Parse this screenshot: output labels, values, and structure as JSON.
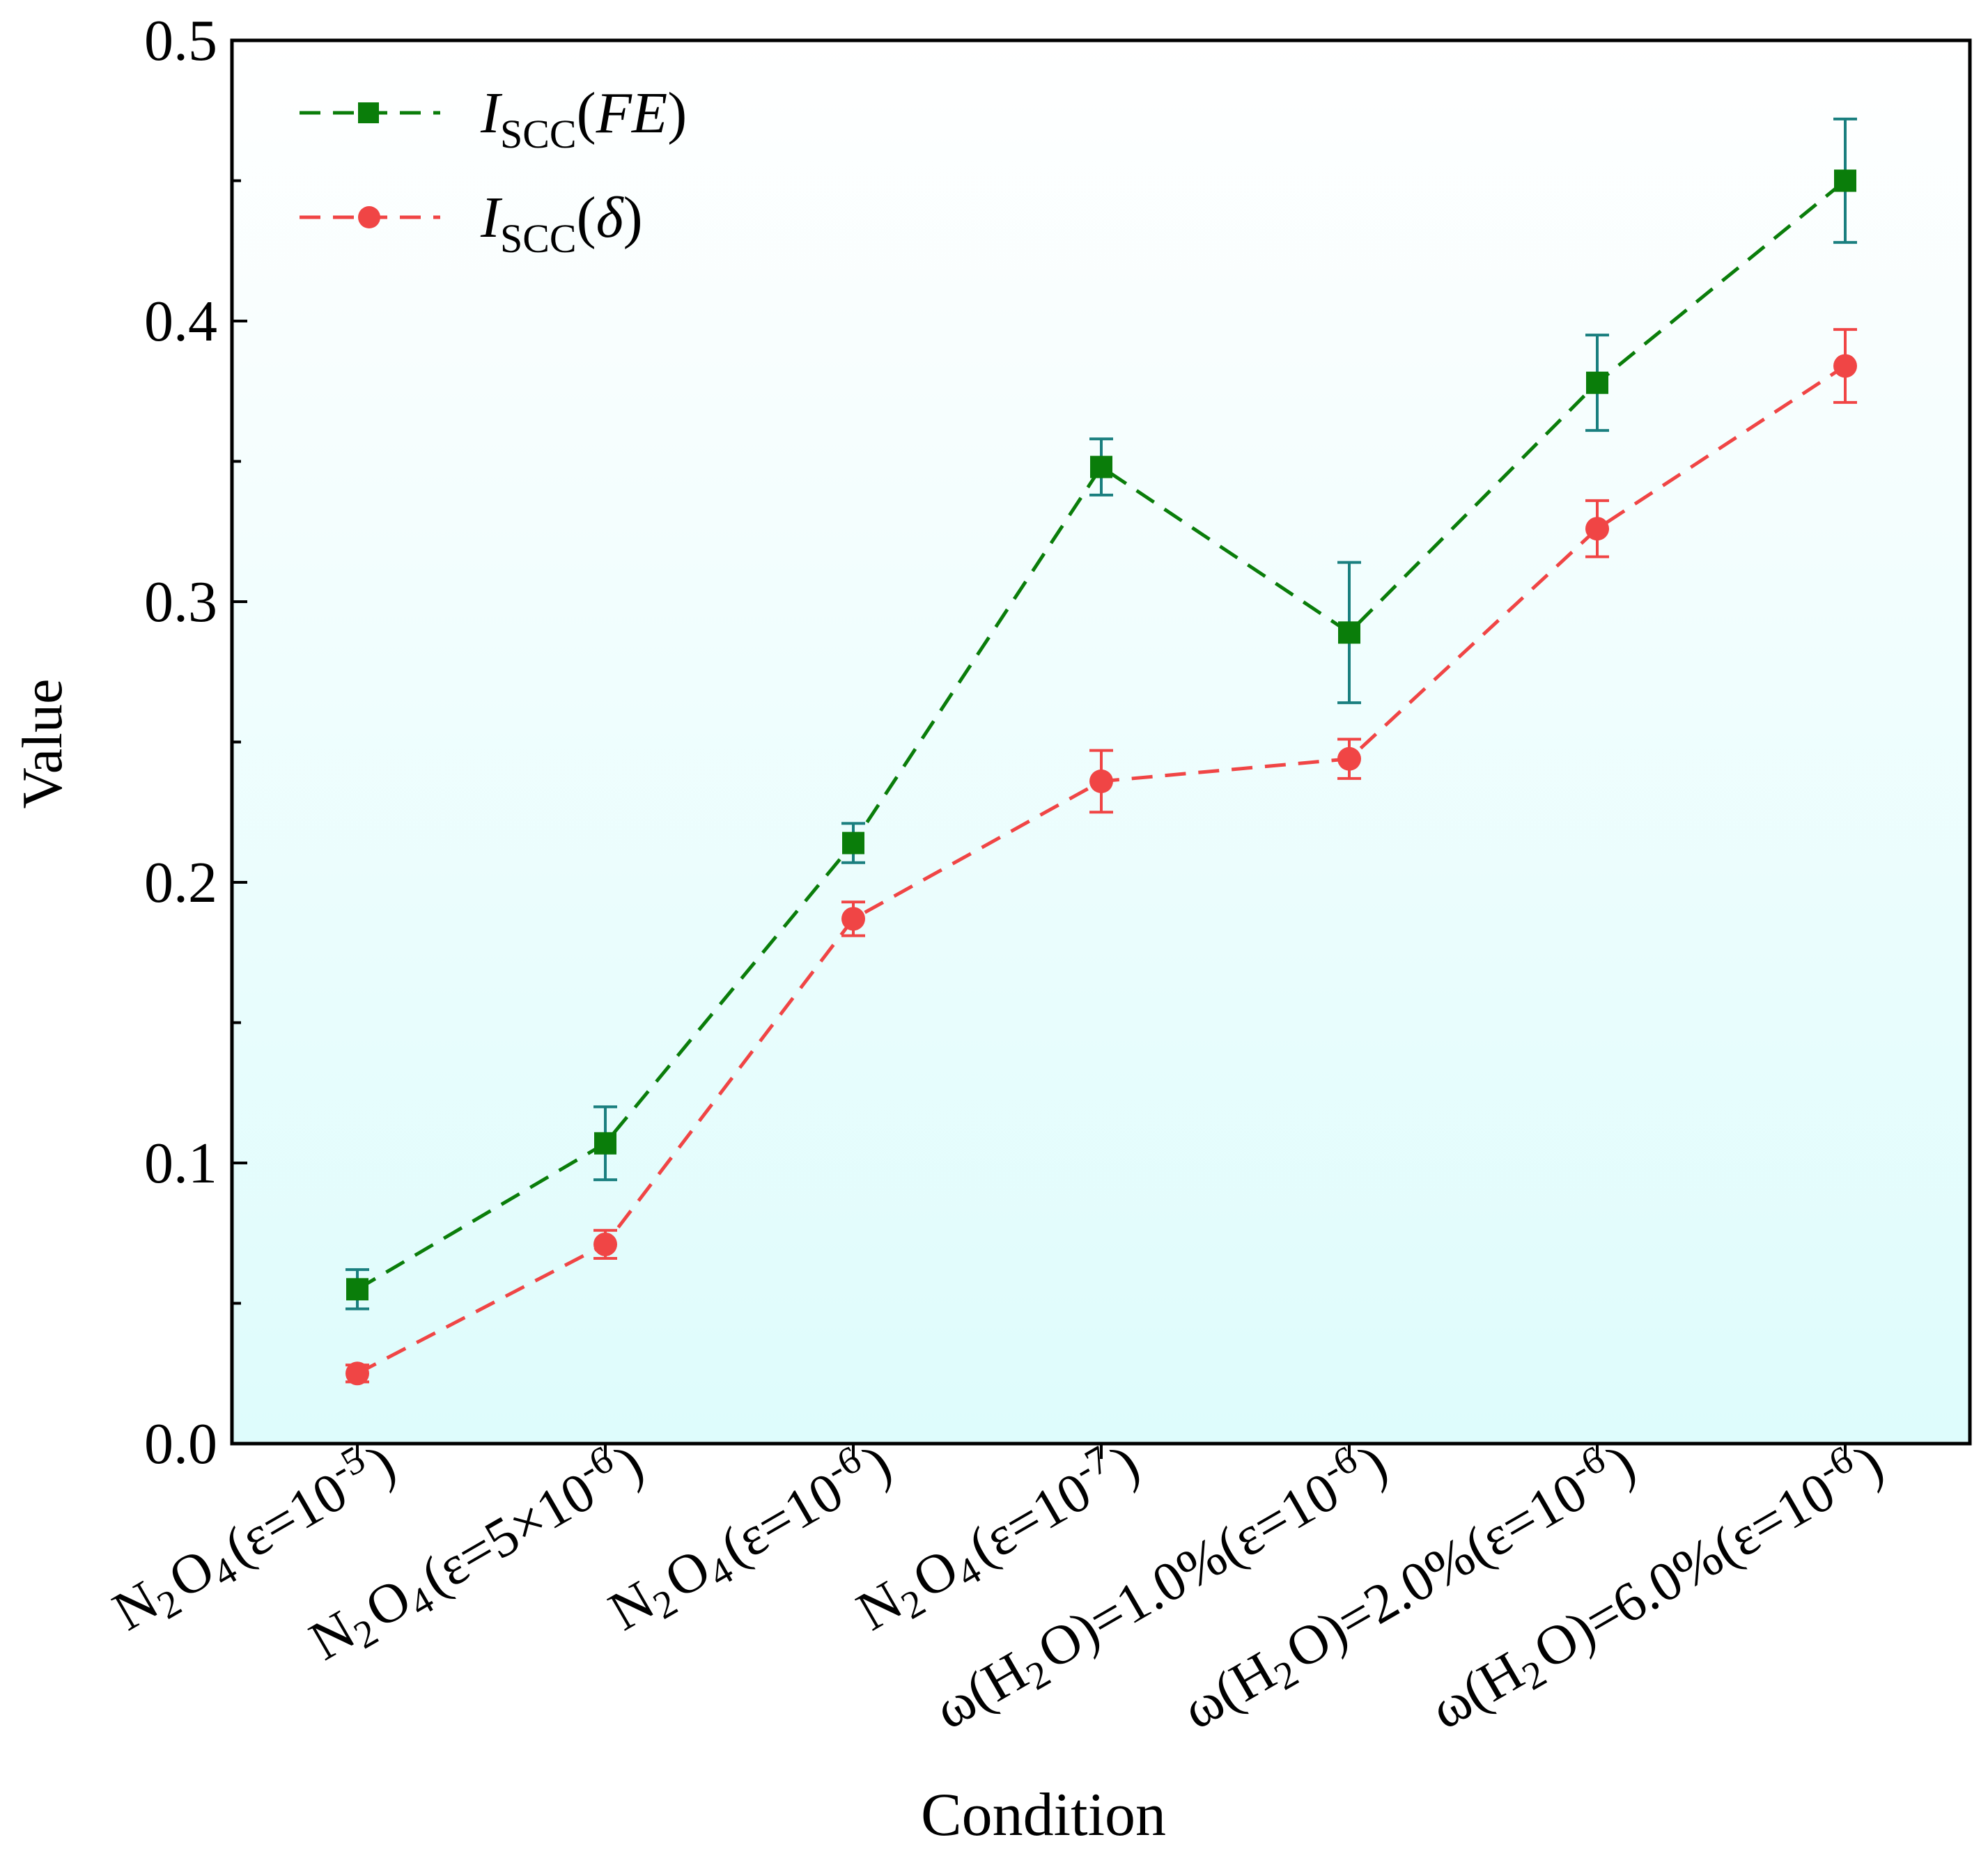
{
  "chart_data": {
    "type": "line",
    "title": "",
    "xlabel": "Condition",
    "ylabel": "Value",
    "ylim": [
      0,
      0.5
    ],
    "yticks": [
      0.0,
      0.1,
      0.2,
      0.3,
      0.4,
      0.5
    ],
    "ytick_labels": [
      "0.0",
      "0.1",
      "0.2",
      "0.3",
      "0.4",
      "0.5"
    ],
    "grid": false,
    "legend_position": "top-left",
    "categories": [
      "N2O4(ε=10-5)",
      "N2O4(ε=5×10-6)",
      "N2O4(ε=10-6)",
      "N2O4(ε=10-7)",
      "ω(H2O)=1.0%(ε=10-6)",
      "ω(H2O)=2.0%(ε=10-6)",
      "ω(H2O)=6.0%(ε=10-6)"
    ],
    "category_parts": [
      [
        [
          "N",
          ""
        ],
        [
          "2",
          "sub"
        ],
        [
          "O",
          ""
        ],
        [
          "4",
          "sub"
        ],
        [
          "(ε=10",
          ""
        ],
        [
          "-5",
          "sup"
        ],
        [
          ")",
          ""
        ]
      ],
      [
        [
          "N",
          ""
        ],
        [
          "2",
          "sub"
        ],
        [
          "O",
          ""
        ],
        [
          "4",
          "sub"
        ],
        [
          "(ε=5×10",
          ""
        ],
        [
          "-6",
          "sup"
        ],
        [
          ")",
          ""
        ]
      ],
      [
        [
          "N",
          ""
        ],
        [
          "2",
          "sub"
        ],
        [
          "O",
          ""
        ],
        [
          "4",
          "sub"
        ],
        [
          "(ε=10",
          ""
        ],
        [
          "-6",
          "sup"
        ],
        [
          ")",
          ""
        ]
      ],
      [
        [
          "N",
          ""
        ],
        [
          "2",
          "sub"
        ],
        [
          "O",
          ""
        ],
        [
          "4",
          "sub"
        ],
        [
          "(ε=10",
          ""
        ],
        [
          "-7",
          "sup"
        ],
        [
          ")",
          ""
        ]
      ],
      [
        [
          "ω(H",
          ""
        ],
        [
          "2",
          "sub"
        ],
        [
          "O)=1.0%(ε=10",
          ""
        ],
        [
          "-6",
          "sup"
        ],
        [
          ")",
          ""
        ]
      ],
      [
        [
          "ω(H",
          ""
        ],
        [
          "2",
          "sub"
        ],
        [
          "O)=2.0%(ε=10",
          ""
        ],
        [
          "-6",
          "sup"
        ],
        [
          ")",
          ""
        ]
      ],
      [
        [
          "ω(H",
          ""
        ],
        [
          "2",
          "sub"
        ],
        [
          "O)=6.0%(ε=10",
          ""
        ],
        [
          "-6",
          "sup"
        ],
        [
          ")",
          ""
        ]
      ]
    ],
    "series": [
      {
        "name": "ISCC(FE)",
        "label_main": "I",
        "label_sub": "SCC",
        "label_arg": "FE",
        "color": "#0a7d0a",
        "error_color": "#1a7f7f",
        "marker": "square",
        "values": [
          0.055,
          0.107,
          0.214,
          0.348,
          0.289,
          0.378,
          0.45
        ],
        "errors": [
          0.007,
          0.013,
          0.007,
          0.01,
          0.025,
          0.017,
          0.022
        ]
      },
      {
        "name": "ISCC(δ)",
        "label_main": "I",
        "label_sub": "SCC",
        "label_arg": "δ",
        "color": "#f04545",
        "error_color": "#f04545",
        "marker": "circle",
        "values": [
          0.025,
          0.071,
          0.187,
          0.236,
          0.244,
          0.326,
          0.384
        ],
        "errors": [
          0.003,
          0.005,
          0.006,
          0.011,
          0.007,
          0.01,
          0.013
        ]
      }
    ]
  }
}
